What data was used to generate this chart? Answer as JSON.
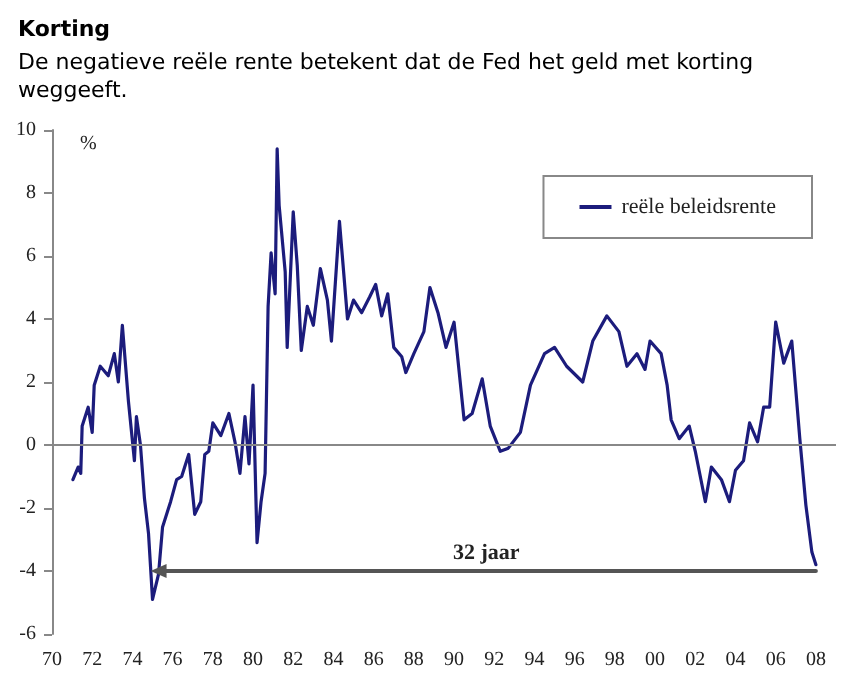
{
  "chart_data": {
    "type": "line",
    "title": "Korting",
    "subtitle": "De negatieve reële rente betekent dat de Fed het geld met korting weggeeft.",
    "ylabel": "%",
    "x": [
      1971.04,
      1971.3,
      1971.43,
      1971.5,
      1971.8,
      1972.0,
      1972.1,
      1972.4,
      1972.8,
      1973.1,
      1973.3,
      1973.5,
      1973.8,
      1974.1,
      1974.2,
      1974.4,
      1974.6,
      1974.8,
      1975.0,
      1975.3,
      1975.5,
      1975.9,
      1976.2,
      1976.45,
      1976.6,
      1976.8,
      1977.1,
      1977.4,
      1977.6,
      1977.8,
      1978.0,
      1978.4,
      1978.8,
      1979.1,
      1979.35,
      1979.6,
      1979.8,
      1980.0,
      1980.2,
      1980.4,
      1980.6,
      1980.75,
      1980.9,
      1981.1,
      1981.2,
      1981.3,
      1981.6,
      1981.7,
      1982.0,
      1982.2,
      1982.4,
      1982.7,
      1983.0,
      1983.35,
      1983.7,
      1983.9,
      1984.3,
      1984.7,
      1985.0,
      1985.4,
      1985.8,
      1986.1,
      1986.4,
      1986.7,
      1987.0,
      1987.4,
      1987.6,
      1988.0,
      1988.5,
      1988.8,
      1989.2,
      1989.6,
      1990.0,
      1990.5,
      1990.9,
      1991.4,
      1991.8,
      1992.3,
      1992.7,
      1993.3,
      1993.8,
      1994.5,
      1995.0,
      1995.6,
      1996.4,
      1996.9,
      1997.6,
      1998.2,
      1998.6,
      1999.1,
      1999.5,
      1999.75,
      2000.3,
      2000.6,
      2000.8,
      2001.2,
      2001.7,
      2002.0,
      2002.5,
      2002.8,
      2003.3,
      2003.7,
      2004.0,
      2004.4,
      2004.7,
      2005.1,
      2005.4,
      2005.7,
      2006.0,
      2006.4,
      2006.8,
      2007.2,
      2007.5,
      2007.8,
      2008.0
    ],
    "series": [
      {
        "name": "reële beleidsrente",
        "color": "#1c1c7c",
        "values": [
          -1.1,
          -0.7,
          -0.9,
          0.6,
          1.2,
          0.4,
          1.9,
          2.5,
          2.2,
          2.9,
          2.0,
          3.8,
          1.4,
          -0.5,
          0.9,
          0,
          -1.7,
          -2.8,
          -4.9,
          -4.1,
          -2.6,
          -1.8,
          -1.1,
          -1.0,
          -0.7,
          -0.3,
          -2.2,
          -1.8,
          -0.3,
          -0.2,
          0.7,
          0.3,
          1.0,
          0.1,
          -0.9,
          0.9,
          -0.6,
          1.9,
          -3.1,
          -1.8,
          -0.9,
          4.4,
          6.1,
          4.8,
          9.4,
          7.6,
          5.5,
          3.1,
          7.4,
          5.7,
          3.0,
          4.4,
          3.8,
          5.6,
          4.6,
          3.3,
          7.1,
          4.0,
          4.6,
          4.2,
          4.7,
          5.1,
          4.1,
          4.8,
          3.1,
          2.8,
          2.3,
          2.9,
          3.6,
          5.0,
          4.2,
          3.1,
          3.9,
          0.8,
          1.0,
          2.1,
          0.6,
          -0.2,
          -0.1,
          0.4,
          1.9,
          2.9,
          3.1,
          2.5,
          2.0,
          3.3,
          4.1,
          3.6,
          2.5,
          2.9,
          2.4,
          3.3,
          2.9,
          1.9,
          0.8,
          0.2,
          0.6,
          -0.2,
          -1.8,
          -0.7,
          -1.1,
          -1.8,
          -0.8,
          -0.5,
          0.7,
          0.1,
          1.2,
          1.2,
          3.9,
          2.6,
          3.3,
          0.2,
          -1.9,
          -3.4,
          -3.8
        ]
      },
      {
        "type": "line",
        "x": [
          1975.3,
          2008
        ],
        "values": [
          -4,
          -4
        ],
        "color": "#555555",
        "marker": "triangle"
      }
    ],
    "xlim": [
      1970,
      2009
    ],
    "xticks": [
      {
        "value": 1970,
        "label": "70"
      },
      {
        "value": 1972,
        "label": "72"
      },
      {
        "value": 1974,
        "label": "74"
      },
      {
        "value": 1976,
        "label": "76"
      },
      {
        "value": 1978,
        "label": "78"
      },
      {
        "value": 1980,
        "label": "80"
      },
      {
        "value": 1982,
        "label": "82"
      },
      {
        "value": 1984,
        "label": "84"
      },
      {
        "value": 1986,
        "label": "86"
      },
      {
        "value": 1988,
        "label": "88"
      },
      {
        "value": 1990,
        "label": "90"
      },
      {
        "value": 1992,
        "label": "92"
      },
      {
        "value": 1994,
        "label": "94"
      },
      {
        "value": 1996,
        "label": "96"
      },
      {
        "value": 1998,
        "label": "98"
      },
      {
        "value": 2000,
        "label": "00"
      },
      {
        "value": 2002,
        "label": "02"
      },
      {
        "value": 2004,
        "label": "04"
      },
      {
        "value": 2006,
        "label": "06"
      },
      {
        "value": 2008,
        "label": "08"
      }
    ],
    "ylim": [
      -6,
      10
    ],
    "yticks": [
      -6,
      -4,
      -2,
      0,
      2,
      4,
      6,
      8,
      10
    ],
    "annotations": [
      {
        "text": "32 jaar",
        "x": 1991.6,
        "y": -4
      }
    ],
    "ref_lines": [
      {
        "axis": "y",
        "value": 0,
        "color": "#888888"
      }
    ],
    "legend": "top right",
    "grid": false,
    "marker": "none",
    "line_style": "solid"
  }
}
